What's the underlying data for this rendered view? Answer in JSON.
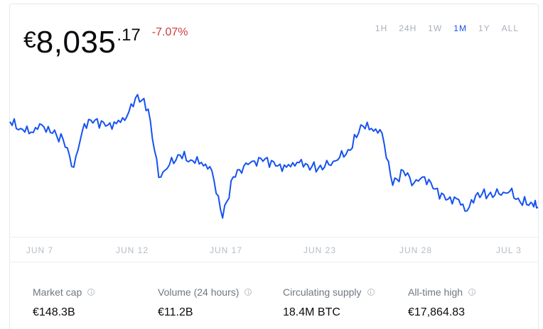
{
  "price": {
    "currency_symbol": "€",
    "whole": "8,035",
    "fraction": ".17",
    "change": "-7.07%",
    "change_color": "#cf3c3c"
  },
  "time_ranges": [
    {
      "label": "1H",
      "active": false
    },
    {
      "label": "24H",
      "active": false
    },
    {
      "label": "1W",
      "active": false
    },
    {
      "label": "1M",
      "active": true
    },
    {
      "label": "1Y",
      "active": false
    },
    {
      "label": "ALL",
      "active": false
    }
  ],
  "accent_color": "#1652f0",
  "chart_data": {
    "type": "line",
    "title": "",
    "xlabel": "",
    "ylabel": "",
    "grid": false,
    "x_tick_labels": [
      "JUN 7",
      "JUN 12",
      "JUN 17",
      "JUN 23",
      "JUN 28",
      "JUL 3"
    ],
    "x_range": [
      "JUN 4",
      "JUL 4"
    ],
    "y_range_eur": [
      6400,
      12200
    ],
    "line_color": "#1652f0",
    "series": [
      {
        "x_day_index": [
          0,
          0.6,
          1.2,
          1.8,
          2.4,
          3.0,
          3.6,
          4.2,
          4.8,
          5.4,
          6.0,
          6.6,
          7.2,
          7.8,
          8.4,
          9.0,
          9.6,
          10.2,
          10.8,
          11.4,
          12.0,
          12.6,
          13.2,
          13.8,
          14.4,
          15.0,
          15.6,
          16.2,
          16.8,
          17.4,
          18.0,
          18.6,
          19.2,
          19.8,
          20.4,
          21.0,
          21.6,
          22.2,
          22.8,
          23.4,
          24.0,
          24.6,
          25.2,
          25.8,
          26.4,
          27.0,
          27.6,
          28.2,
          28.8,
          29.4,
          29.8
        ],
        "values": [
          10980,
          10700,
          10550,
          10850,
          10500,
          10250,
          9100,
          10900,
          11050,
          10800,
          10900,
          11200,
          12100,
          11500,
          8680,
          9200,
          9600,
          9400,
          9300,
          8950,
          7000,
          8700,
          9150,
          9350,
          9450,
          9150,
          9100,
          9300,
          9200,
          9050,
          9200,
          9500,
          9800,
          10850,
          10700,
          10500,
          8350,
          8950,
          8450,
          8700,
          8200,
          7750,
          7800,
          7300,
          8050,
          7950,
          8000,
          8100,
          7650,
          7650,
          7450
        ]
      }
    ]
  },
  "x_ticks": [
    "JUN 7",
    "JUN 12",
    "JUN 17",
    "JUN 23",
    "JUN 28",
    "JUL 3"
  ],
  "stats": [
    {
      "label": "Market cap",
      "value": "€148.3B"
    },
    {
      "label": "Volume (24 hours)",
      "value": "€11.2B"
    },
    {
      "label": "Circulating supply",
      "value": "18.4M BTC"
    },
    {
      "label": "All-time high",
      "value": "€17,864.83"
    }
  ]
}
